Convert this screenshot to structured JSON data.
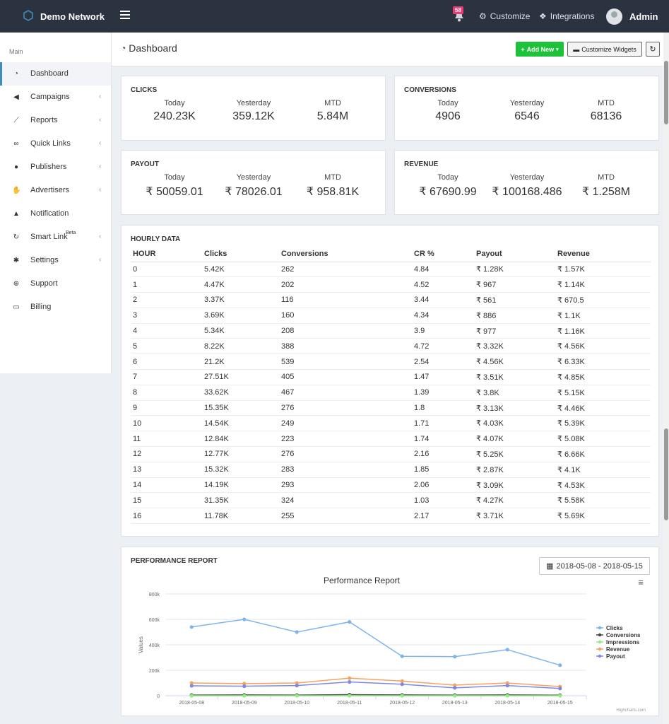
{
  "topbar": {
    "brand": "Demo Network",
    "notification_count": "58",
    "customize": "Customize",
    "integrations": "Integrations",
    "user": "Admin"
  },
  "sidebar": {
    "heading": "Main",
    "items": [
      {
        "label": "Dashboard",
        "icon": "dashboard-icon",
        "chevron": false
      },
      {
        "label": "Campaigns",
        "icon": "megaphone-icon",
        "chevron": true
      },
      {
        "label": "Reports",
        "icon": "line-chart-icon",
        "chevron": true
      },
      {
        "label": "Quick Links",
        "icon": "link-icon",
        "chevron": true
      },
      {
        "label": "Publishers",
        "icon": "users-icon",
        "chevron": true
      },
      {
        "label": "Advertisers",
        "icon": "handshake-icon",
        "chevron": true
      },
      {
        "label": "Notification",
        "icon": "bell-icon",
        "chevron": false
      },
      {
        "label": "Smart Link",
        "sup": "Beta",
        "icon": "smart-link-icon",
        "chevron": true
      },
      {
        "label": "Settings",
        "icon": "gear-icon",
        "chevron": true
      },
      {
        "label": "Support",
        "icon": "lifebuoy-icon",
        "chevron": false
      },
      {
        "label": "Billing",
        "icon": "credit-card-icon",
        "chevron": false
      }
    ]
  },
  "header": {
    "title": "Dashboard",
    "add_new": "Add New",
    "customize_widgets": "Customize Widgets"
  },
  "stats": {
    "clicks": {
      "title": "CLICKS",
      "today_label": "Today",
      "yesterday_label": "Yesterday",
      "mtd_label": "MTD",
      "today": "240.23K",
      "yesterday": "359.12K",
      "mtd": "5.84M"
    },
    "conversions": {
      "title": "CONVERSIONS",
      "today_label": "Today",
      "yesterday_label": "Yesterday",
      "mtd_label": "MTD",
      "today": "4906",
      "yesterday": "6546",
      "mtd": "68136"
    },
    "payout": {
      "title": "PAYOUT",
      "today_label": "Today",
      "yesterday_label": "Yesterday",
      "mtd_label": "MTD",
      "today": "₹ 50059.01",
      "yesterday": "₹ 78026.01",
      "mtd": "₹ 958.81K"
    },
    "revenue": {
      "title": "REVENUE",
      "today_label": "Today",
      "yesterday_label": "Yesterday",
      "mtd_label": "MTD",
      "today": "₹ 67690.99",
      "yesterday": "₹ 100168.486",
      "mtd": "₹ 1.258M"
    }
  },
  "hourly": {
    "title": "HOURLY DATA",
    "columns": [
      "HOUR",
      "Clicks",
      "Conversions",
      "CR %",
      "Payout",
      "Revenue"
    ],
    "rows": [
      [
        "0",
        "5.42K",
        "262",
        "4.84",
        "₹ 1.28K",
        "₹ 1.57K"
      ],
      [
        "1",
        "4.47K",
        "202",
        "4.52",
        "₹ 967",
        "₹ 1.14K"
      ],
      [
        "2",
        "3.37K",
        "116",
        "3.44",
        "₹ 561",
        "₹ 670.5"
      ],
      [
        "3",
        "3.69K",
        "160",
        "4.34",
        "₹ 886",
        "₹ 1.1K"
      ],
      [
        "4",
        "5.34K",
        "208",
        "3.9",
        "₹ 977",
        "₹ 1.16K"
      ],
      [
        "5",
        "8.22K",
        "388",
        "4.72",
        "₹ 3.32K",
        "₹ 4.56K"
      ],
      [
        "6",
        "21.2K",
        "539",
        "2.54",
        "₹ 4.56K",
        "₹ 6.33K"
      ],
      [
        "7",
        "27.51K",
        "405",
        "1.47",
        "₹ 3.51K",
        "₹ 4.85K"
      ],
      [
        "8",
        "33.62K",
        "467",
        "1.39",
        "₹ 3.8K",
        "₹ 5.15K"
      ],
      [
        "9",
        "15.35K",
        "276",
        "1.8",
        "₹ 3.13K",
        "₹ 4.46K"
      ],
      [
        "10",
        "14.54K",
        "249",
        "1.71",
        "₹ 4.03K",
        "₹ 5.39K"
      ],
      [
        "11",
        "12.84K",
        "223",
        "1.74",
        "₹ 4.07K",
        "₹ 5.08K"
      ],
      [
        "12",
        "12.77K",
        "276",
        "2.16",
        "₹ 5.25K",
        "₹ 6.66K"
      ],
      [
        "13",
        "15.32K",
        "283",
        "1.85",
        "₹ 2.87K",
        "₹ 4.1K"
      ],
      [
        "14",
        "14.19K",
        "293",
        "2.06",
        "₹ 3.09K",
        "₹ 4.53K"
      ],
      [
        "15",
        "31.35K",
        "324",
        "1.03",
        "₹ 4.27K",
        "₹ 5.58K"
      ],
      [
        "16",
        "11.78K",
        "255",
        "2.17",
        "₹ 3.71K",
        "₹ 5.69K"
      ]
    ]
  },
  "performance": {
    "title": "PERFORMANCE REPORT",
    "date_range": "2018-05-08 - 2018-05-15",
    "credit": "Highcharts.com"
  },
  "chart_data": {
    "type": "line",
    "title": "Performance Report",
    "ylabel": "Values",
    "xlabel": "",
    "ylim": [
      0,
      800000
    ],
    "yticks": [
      0,
      200000,
      400000,
      600000,
      800000
    ],
    "ytick_labels": [
      "0",
      "200k",
      "400k",
      "600k",
      "800k"
    ],
    "categories": [
      "2018-05-08",
      "2018-05-09",
      "2018-05-10",
      "2018-05-11",
      "2018-05-12",
      "2018-05-13",
      "2018-05-14",
      "2018-05-15"
    ],
    "legend": "right",
    "series": [
      {
        "name": "Clicks",
        "color": "#7cb5ec",
        "values": [
          540000,
          600000,
          500000,
          580000,
          310000,
          307000,
          362000,
          240000
        ]
      },
      {
        "name": "Conversions",
        "color": "#434348",
        "values": [
          5000,
          6000,
          5000,
          8000,
          6000,
          5000,
          6000,
          4000
        ]
      },
      {
        "name": "Impressions",
        "color": "#90ed7d",
        "values": [
          0,
          0,
          0,
          0,
          0,
          0,
          0,
          0
        ]
      },
      {
        "name": "Revenue",
        "color": "#f7a35c",
        "values": [
          100000,
          95000,
          100000,
          138000,
          115000,
          83000,
          100000,
          72000
        ]
      },
      {
        "name": "Payout",
        "color": "#8085e9",
        "values": [
          78000,
          75000,
          80000,
          108000,
          90000,
          62000,
          80000,
          57000
        ]
      }
    ]
  }
}
